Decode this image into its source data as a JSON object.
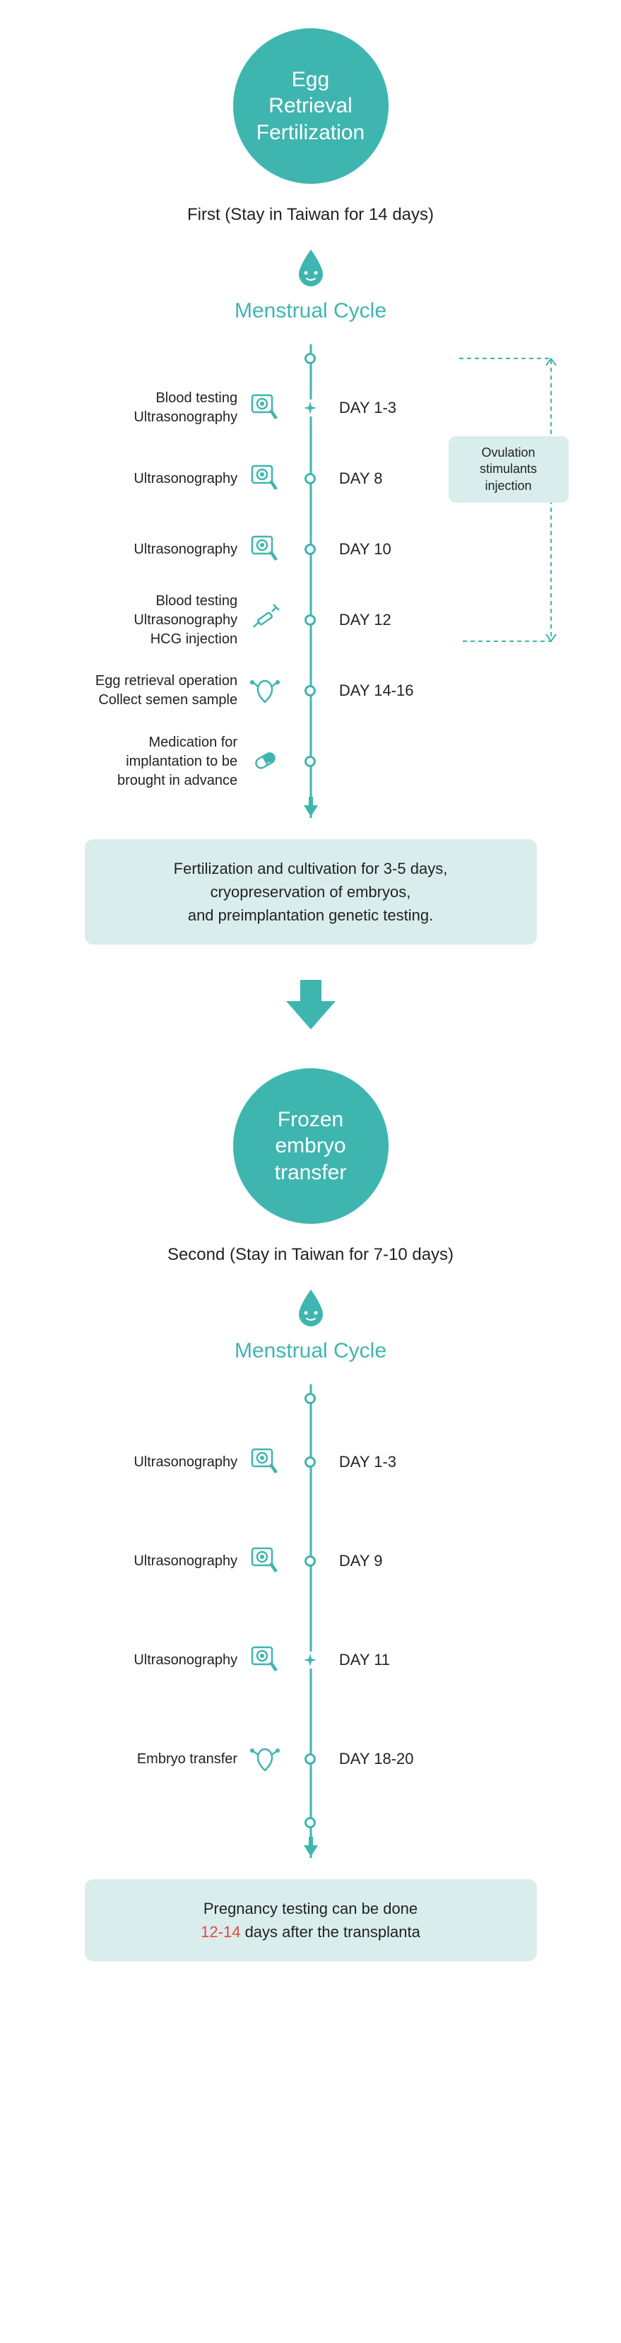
{
  "colors": {
    "teal": "#3fb5b0",
    "teal_light": "#d9eeec",
    "text": "#222222",
    "red": "#e4463a",
    "white": "#ffffff"
  },
  "phase1": {
    "circle_title": "Egg\nRetrieval\nFertilization",
    "subtitle": "First (Stay in Taiwan for 14 days)",
    "cycle_title": "Menstrual Cycle",
    "bracket_label": "Ovulation stimulants injection",
    "steps": [
      {
        "left": "Blood testing\nUltrasonography",
        "icon": "ultrasound",
        "day": "DAY 1-3",
        "node": "plane"
      },
      {
        "left": "Ultrasonography",
        "icon": "ultrasound",
        "day": "DAY 8",
        "node": "dot"
      },
      {
        "left": "Ultrasonography",
        "icon": "ultrasound",
        "day": "DAY 10",
        "node": "dot"
      },
      {
        "left": "Blood testing\nUltrasonography\nHCG injection",
        "icon": "syringe",
        "day": "DAY 12",
        "node": "dot"
      },
      {
        "left": "Egg retrieval operation\nCollect semen sample",
        "icon": "uterus",
        "day": "DAY 14-16",
        "node": "dot"
      },
      {
        "left": "Medication for\nimplantation to be\nbrought in advance",
        "icon": "pill",
        "day": "",
        "node": "dot"
      }
    ],
    "info_box": "Fertilization and cultivation for 3-5 days,\ncryopreservation of embryos,\nand preimplantation genetic testing."
  },
  "phase2": {
    "circle_title": "Frozen\nembryo\ntransfer",
    "subtitle": "Second (Stay in Taiwan for 7-10 days)",
    "cycle_title": "Menstrual Cycle",
    "steps": [
      {
        "left": "Ultrasonography",
        "icon": "ultrasound",
        "day": "DAY 1-3",
        "node": "dot"
      },
      {
        "left": "Ultrasonography",
        "icon": "ultrasound",
        "day": "DAY 9",
        "node": "dot"
      },
      {
        "left": "Ultrasonography",
        "icon": "ultrasound",
        "day": "DAY 11",
        "node": "plane"
      },
      {
        "left": "Embryo transfer",
        "icon": "uterus",
        "day": "DAY 18-20",
        "node": "dot"
      }
    ],
    "info_box_pre": "Pregnancy testing can be done",
    "info_box_red": "12-14",
    "info_box_post": " days after the transplanta"
  }
}
